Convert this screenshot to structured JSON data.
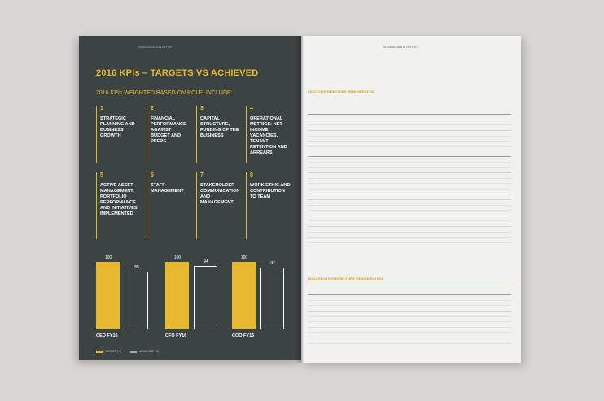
{
  "header": {
    "left": "REMUNERATION REPORT",
    "right": "REMUNERATION REPORT"
  },
  "title": "2016 KPIs – TARGETS VS ACHIEVED",
  "subtitle": "2016 KPIs WEIGHTED BASED ON ROLE, INCLUDE:",
  "kpis": [
    {
      "number": 1,
      "text": "STRATEGIC PLANNING AND BUSINESS GROWTH"
    },
    {
      "number": 2,
      "text": "FINANCIAL PERFORMANCE AGAINST BUDGET AND PEERS"
    },
    {
      "number": 3,
      "text": "CAPITAL STRUCTURE, FUNDING OF THE BUSINESS"
    },
    {
      "number": 4,
      "text": "OPERATIONAL METRICS: NET INCOME, VACANCIES, TENANT RETENTION AND ARREARS"
    },
    {
      "number": 5,
      "text": "ACTIVE ASSET MANAGEMENT, PORTFOLIO PERFORMANCE AND INITIATIVES IMPLEMENTED"
    },
    {
      "number": 6,
      "text": "STAFF MANAGEMENT"
    },
    {
      "number": 7,
      "text": "STAKEHOLDER COMMUNICATION AND MANAGEMENT"
    },
    {
      "number": 8,
      "text": "WORK ETHIC AND CONTRIBUTION TO TEAM"
    }
  ],
  "chart": {
    "type": "bar",
    "ylim": [
      0,
      100
    ],
    "categories": [
      "CEO FY16",
      "CFO FY16",
      "COO FY16"
    ],
    "series": [
      {
        "name": "TARGET (%)",
        "color": "#e8b92e",
        "values": [
          100,
          100,
          100
        ]
      },
      {
        "name": "ACHIEVED (%)",
        "color": "#ffffff",
        "values": [
          85,
          94,
          92
        ]
      }
    ]
  },
  "right": {
    "section1": "EXECUTIVE DIRECTORS' REMUNERATION",
    "section2": "NON-EXECUTIVE DIRECTORS' REMUNERATION"
  }
}
